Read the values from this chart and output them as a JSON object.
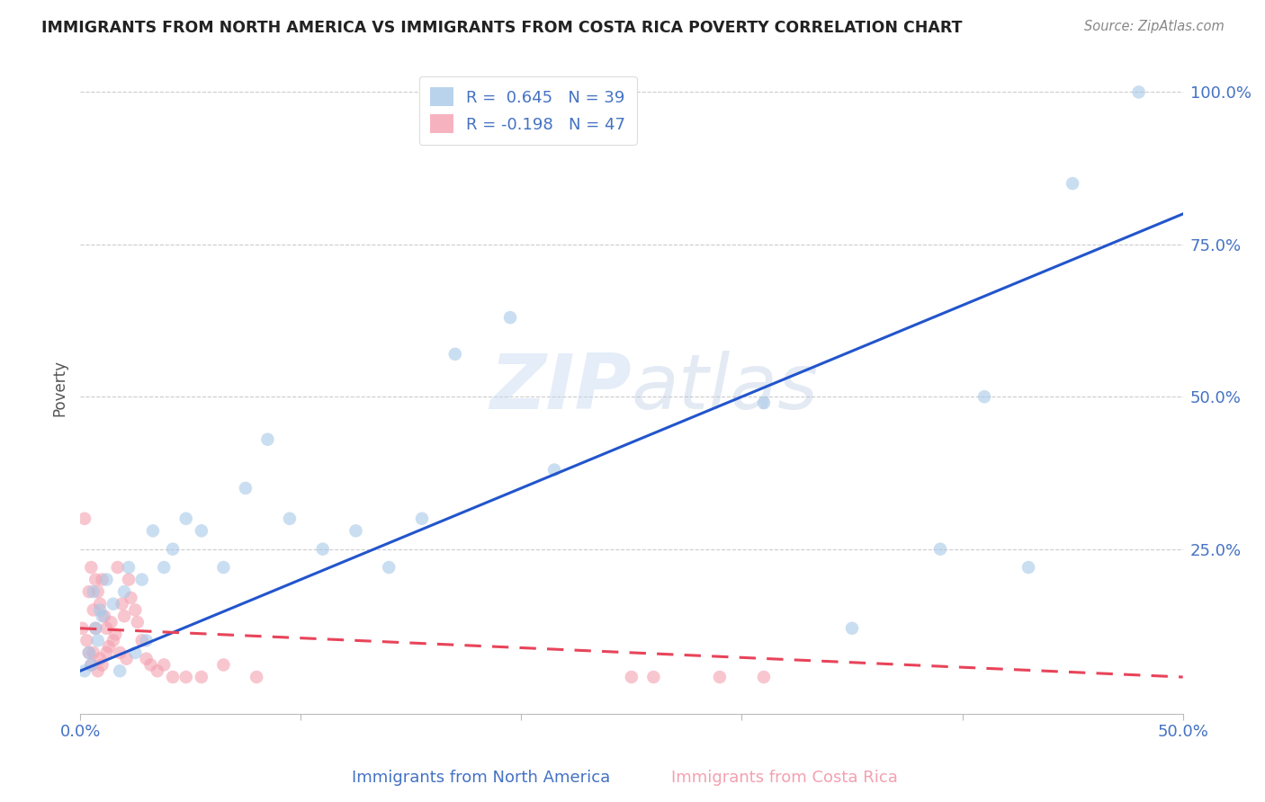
{
  "title": "IMMIGRANTS FROM NORTH AMERICA VS IMMIGRANTS FROM COSTA RICA POVERTY CORRELATION CHART",
  "source": "Source: ZipAtlas.com",
  "xlabel_blue": "Immigrants from North America",
  "xlabel_pink": "Immigrants from Costa Rica",
  "ylabel": "Poverty",
  "xlim": [
    0.0,
    0.5
  ],
  "ylim": [
    -0.02,
    1.05
  ],
  "R_blue": 0.645,
  "N_blue": 39,
  "R_pink": -0.198,
  "N_pink": 47,
  "blue_color": "#a8c8e8",
  "pink_color": "#f4a0b0",
  "blue_line_color": "#2255cc",
  "pink_line_color": "#e8445a",
  "watermark_zip": "ZIP",
  "watermark_atlas": "atlas",
  "blue_scatter_x": [
    0.002,
    0.004,
    0.005,
    0.006,
    0.007,
    0.008,
    0.009,
    0.01,
    0.012,
    0.015,
    0.018,
    0.02,
    0.022,
    0.025,
    0.028,
    0.03,
    0.033,
    0.038,
    0.042,
    0.048,
    0.055,
    0.065,
    0.075,
    0.085,
    0.095,
    0.11,
    0.125,
    0.14,
    0.155,
    0.17,
    0.195,
    0.215,
    0.31,
    0.35,
    0.39,
    0.41,
    0.43,
    0.45,
    0.48
  ],
  "blue_scatter_y": [
    0.05,
    0.08,
    0.06,
    0.18,
    0.12,
    0.1,
    0.15,
    0.14,
    0.2,
    0.16,
    0.05,
    0.18,
    0.22,
    0.08,
    0.2,
    0.1,
    0.28,
    0.22,
    0.25,
    0.3,
    0.28,
    0.22,
    0.35,
    0.43,
    0.3,
    0.25,
    0.28,
    0.22,
    0.3,
    0.57,
    0.63,
    0.38,
    0.49,
    0.12,
    0.25,
    0.5,
    0.22,
    0.85,
    1.0
  ],
  "pink_scatter_x": [
    0.001,
    0.002,
    0.003,
    0.004,
    0.004,
    0.005,
    0.005,
    0.006,
    0.006,
    0.007,
    0.007,
    0.008,
    0.008,
    0.009,
    0.009,
    0.01,
    0.01,
    0.011,
    0.012,
    0.012,
    0.013,
    0.014,
    0.015,
    0.016,
    0.017,
    0.018,
    0.019,
    0.02,
    0.021,
    0.022,
    0.023,
    0.025,
    0.026,
    0.028,
    0.03,
    0.032,
    0.035,
    0.038,
    0.042,
    0.048,
    0.055,
    0.065,
    0.08,
    0.25,
    0.26,
    0.29,
    0.31
  ],
  "pink_scatter_y": [
    0.12,
    0.3,
    0.1,
    0.08,
    0.18,
    0.06,
    0.22,
    0.15,
    0.08,
    0.12,
    0.2,
    0.05,
    0.18,
    0.07,
    0.16,
    0.06,
    0.2,
    0.14,
    0.08,
    0.12,
    0.09,
    0.13,
    0.1,
    0.11,
    0.22,
    0.08,
    0.16,
    0.14,
    0.07,
    0.2,
    0.17,
    0.15,
    0.13,
    0.1,
    0.07,
    0.06,
    0.05,
    0.06,
    0.04,
    0.04,
    0.04,
    0.06,
    0.04,
    0.04,
    0.04,
    0.04,
    0.04
  ],
  "blue_line_x": [
    0.0,
    0.5
  ],
  "blue_line_y": [
    0.05,
    0.8
  ],
  "pink_line_x": [
    0.0,
    0.5
  ],
  "pink_line_y": [
    0.12,
    0.04
  ]
}
